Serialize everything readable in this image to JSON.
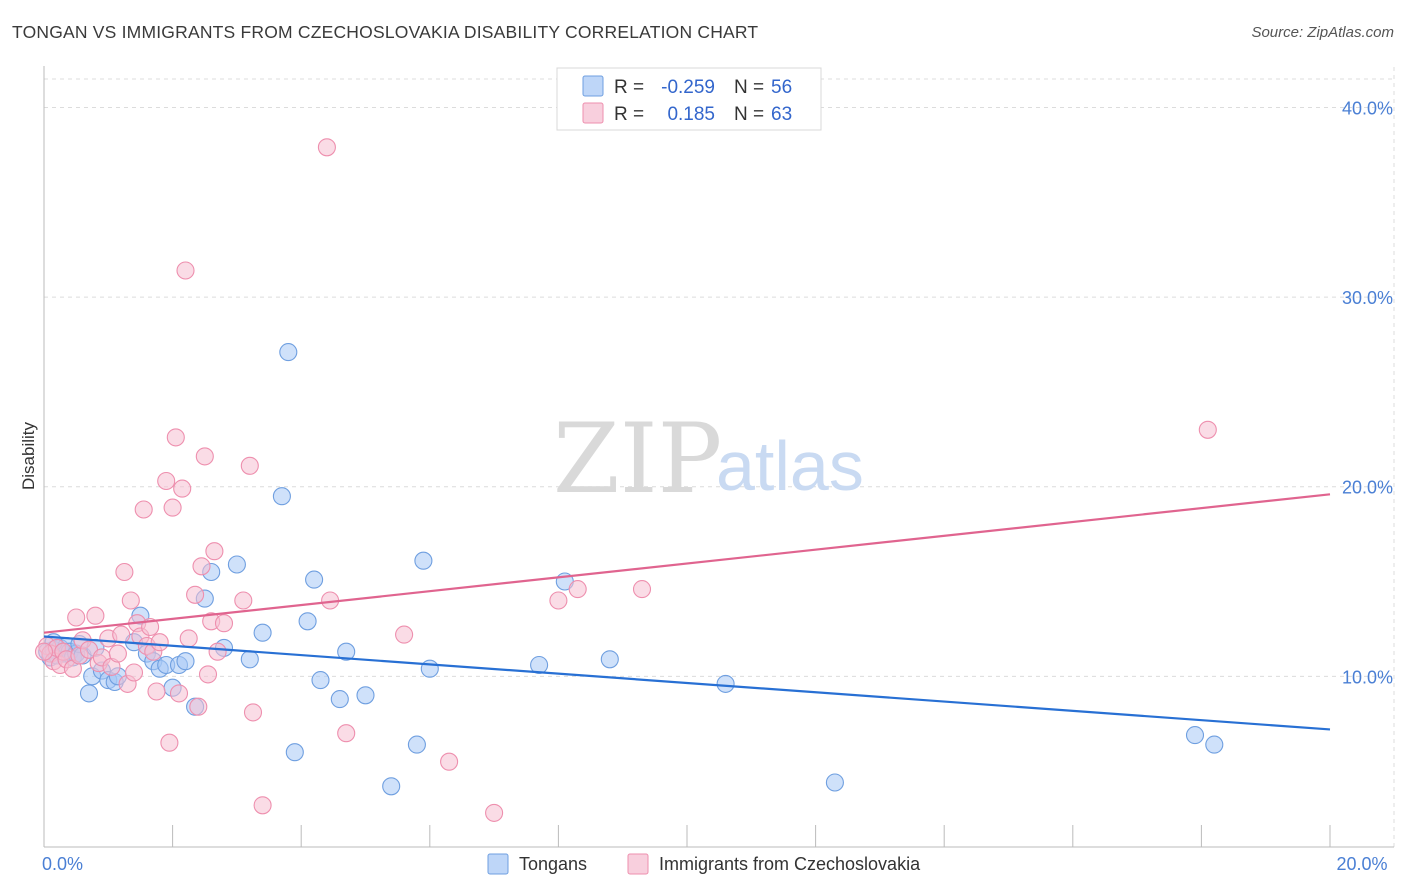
{
  "header": {
    "title": "TONGAN VS IMMIGRANTS FROM CZECHOSLOVAKIA DISABILITY CORRELATION CHART",
    "source": "Source: ZipAtlas.com"
  },
  "watermark": {
    "zip": "ZIP",
    "atlas": "atlas"
  },
  "chart_data": {
    "type": "scatter",
    "title": "TONGAN VS IMMIGRANTS FROM CZECHOSLOVAKIA DISABILITY CORRELATION CHART",
    "ylabel": "Disability",
    "xlabel": "",
    "xlim": [
      0,
      20
    ],
    "ylim": [
      1.0,
      41.5
    ],
    "x_ticks": [
      0,
      20
    ],
    "x_tick_labels": [
      "0.0%",
      "20.0%"
    ],
    "y_ticks": [
      10,
      20,
      30,
      40
    ],
    "y_tick_labels": [
      "10.0%",
      "20.0%",
      "30.0%",
      "40.0%"
    ],
    "grid": true,
    "legend_position": "top-center",
    "series": [
      {
        "name": "Tongans",
        "color": "#a8c8f5",
        "edge": "#6f9fe0",
        "line_color": "#2870d4",
        "R": "-0.259",
        "N": "56",
        "trend": {
          "x": [
            0,
            20
          ],
          "y": [
            12.1,
            7.2
          ]
        },
        "points": [
          [
            0.05,
            11.3
          ],
          [
            0.1,
            11.0
          ],
          [
            0.15,
            11.4
          ],
          [
            0.2,
            11.1
          ],
          [
            0.25,
            11.5
          ],
          [
            0.3,
            11.2
          ],
          [
            0.35,
            11.6
          ],
          [
            0.4,
            11.3
          ],
          [
            0.45,
            11.0
          ],
          [
            0.5,
            11.2
          ],
          [
            0.55,
            11.7
          ],
          [
            0.6,
            11.1
          ],
          [
            0.7,
            9.1
          ],
          [
            0.75,
            10.0
          ],
          [
            0.8,
            11.5
          ],
          [
            0.9,
            10.3
          ],
          [
            1.0,
            9.8
          ],
          [
            1.1,
            9.7
          ],
          [
            1.15,
            10.0
          ],
          [
            1.4,
            11.8
          ],
          [
            1.5,
            13.2
          ],
          [
            1.6,
            11.2
          ],
          [
            1.7,
            10.8
          ],
          [
            1.8,
            10.4
          ],
          [
            1.9,
            10.6
          ],
          [
            2.0,
            9.4
          ],
          [
            2.1,
            10.6
          ],
          [
            2.2,
            10.8
          ],
          [
            2.35,
            8.4
          ],
          [
            2.5,
            14.1
          ],
          [
            2.6,
            15.5
          ],
          [
            2.8,
            11.5
          ],
          [
            3.0,
            15.9
          ],
          [
            3.2,
            10.9
          ],
          [
            3.4,
            12.3
          ],
          [
            3.7,
            19.5
          ],
          [
            3.8,
            27.1
          ],
          [
            3.9,
            6.0
          ],
          [
            4.1,
            12.9
          ],
          [
            4.2,
            15.1
          ],
          [
            4.3,
            9.8
          ],
          [
            4.6,
            8.8
          ],
          [
            4.7,
            11.3
          ],
          [
            5.0,
            9.0
          ],
          [
            5.4,
            4.2
          ],
          [
            5.8,
            6.4
          ],
          [
            5.9,
            16.1
          ],
          [
            6.0,
            10.4
          ],
          [
            7.7,
            10.6
          ],
          [
            8.1,
            15.0
          ],
          [
            8.8,
            10.9
          ],
          [
            10.6,
            9.6
          ],
          [
            12.3,
            4.4
          ],
          [
            17.9,
            6.9
          ],
          [
            18.2,
            6.4
          ],
          [
            0.15,
            11.8
          ]
        ]
      },
      {
        "name": "Immigrants from Czechoslovakia",
        "color": "#f6bfd2",
        "edge": "#ee8fae",
        "line_color": "#e0648f",
        "R": "0.185",
        "N": "63",
        "trend": {
          "x": [
            0,
            20
          ],
          "y": [
            12.3,
            19.6
          ]
        },
        "points": [
          [
            0.05,
            11.6
          ],
          [
            0.1,
            11.2
          ],
          [
            0.15,
            10.8
          ],
          [
            0.2,
            11.5
          ],
          [
            0.25,
            10.6
          ],
          [
            0.3,
            11.3
          ],
          [
            0.35,
            10.9
          ],
          [
            0.45,
            10.4
          ],
          [
            0.5,
            13.1
          ],
          [
            0.55,
            11.1
          ],
          [
            0.6,
            11.9
          ],
          [
            0.7,
            11.4
          ],
          [
            0.8,
            13.2
          ],
          [
            0.85,
            10.7
          ],
          [
            0.9,
            11.0
          ],
          [
            1.0,
            12.0
          ],
          [
            1.05,
            10.5
          ],
          [
            1.15,
            11.2
          ],
          [
            1.2,
            12.2
          ],
          [
            1.25,
            15.5
          ],
          [
            1.3,
            9.6
          ],
          [
            1.35,
            14.0
          ],
          [
            1.4,
            10.2
          ],
          [
            1.45,
            12.8
          ],
          [
            1.5,
            12.1
          ],
          [
            1.55,
            18.8
          ],
          [
            1.6,
            11.6
          ],
          [
            1.65,
            12.6
          ],
          [
            1.7,
            11.3
          ],
          [
            1.75,
            9.2
          ],
          [
            1.8,
            11.8
          ],
          [
            1.9,
            20.3
          ],
          [
            1.95,
            6.5
          ],
          [
            2.0,
            18.9
          ],
          [
            2.05,
            22.6
          ],
          [
            2.1,
            9.1
          ],
          [
            2.15,
            19.9
          ],
          [
            2.2,
            31.4
          ],
          [
            2.25,
            12.0
          ],
          [
            2.35,
            14.3
          ],
          [
            2.4,
            8.4
          ],
          [
            2.45,
            15.8
          ],
          [
            2.5,
            21.6
          ],
          [
            2.55,
            10.1
          ],
          [
            2.6,
            12.9
          ],
          [
            2.65,
            16.6
          ],
          [
            2.7,
            11.3
          ],
          [
            2.8,
            12.8
          ],
          [
            3.1,
            14.0
          ],
          [
            3.2,
            21.1
          ],
          [
            3.25,
            8.1
          ],
          [
            3.4,
            3.2
          ],
          [
            4.45,
            14.0
          ],
          [
            4.4,
            37.9
          ],
          [
            4.7,
            7.0
          ],
          [
            5.6,
            12.2
          ],
          [
            6.3,
            5.5
          ],
          [
            7.0,
            2.8
          ],
          [
            8.0,
            14.0
          ],
          [
            8.3,
            14.6
          ],
          [
            9.3,
            14.6
          ],
          [
            18.1,
            23.0
          ],
          [
            0.0,
            11.3
          ]
        ]
      }
    ]
  }
}
